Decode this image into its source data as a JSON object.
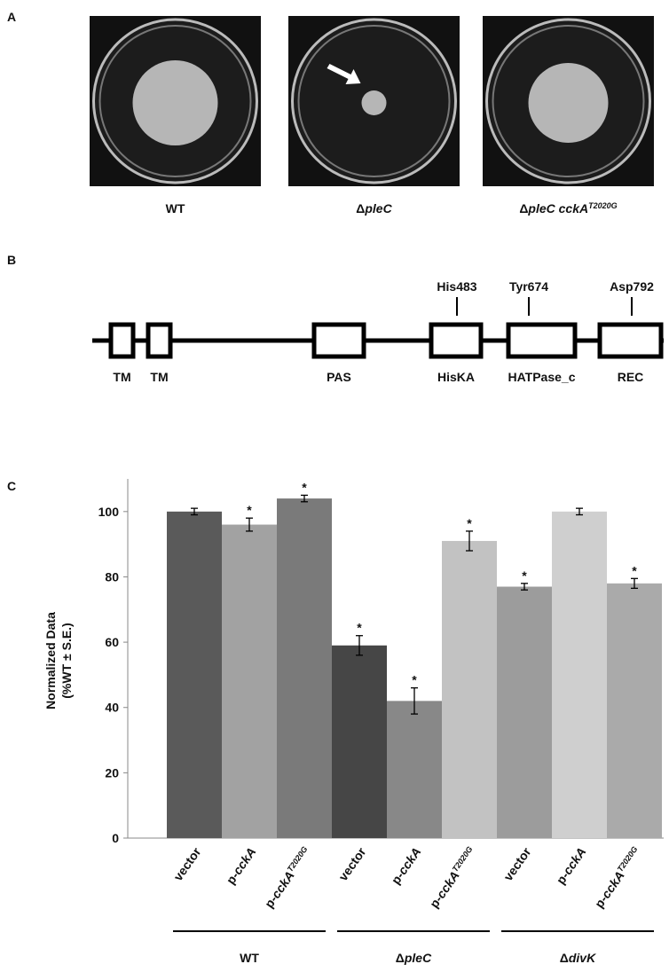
{
  "panel_a": {
    "label": "A",
    "plates": [
      {
        "label": [
          {
            "text": "WT"
          }
        ]
      },
      {
        "label": [
          {
            "text": "Δ"
          },
          {
            "text": "pleC",
            "italic": true
          }
        ]
      },
      {
        "label": [
          {
            "text": "Δ"
          },
          {
            "text": "pleC cckA",
            "italic": true
          },
          {
            "text": "T2020G",
            "italic": true,
            "superscript": true
          }
        ]
      }
    ]
  },
  "panel_b": {
    "label": "B",
    "domains": [
      {
        "label": "TM"
      },
      {
        "label": "TM"
      },
      {
        "label": "PAS"
      },
      {
        "label": "HisKA"
      },
      {
        "label": "HATPase_c"
      },
      {
        "label": "REC"
      }
    ],
    "sites": [
      {
        "label": "His483"
      },
      {
        "label": "Tyr674"
      },
      {
        "label": "Asp792"
      }
    ]
  },
  "panel_c": {
    "label": "C"
  },
  "chart_data": {
    "type": "bar",
    "y_label": [
      "Normalized Data",
      "(%WT ± S.E.)"
    ],
    "categories": [
      {
        "text": "vector"
      },
      {
        "prefix": "p-",
        "italic": "cckA"
      },
      {
        "prefix": "p-",
        "italic": "cckA",
        "superscript": "T2020G"
      },
      {
        "text": "vector"
      },
      {
        "prefix": "p-",
        "italic": "cckA"
      },
      {
        "prefix": "p-",
        "italic": "cckA",
        "superscript": "T2020G"
      },
      {
        "text": "vector"
      },
      {
        "prefix": "p-",
        "italic": "cckA"
      },
      {
        "prefix": "p-",
        "italic": "cckA",
        "superscript": "T2020G"
      }
    ],
    "values": [
      100,
      96,
      104,
      59,
      42,
      91,
      77,
      100,
      78
    ],
    "errors": [
      1,
      2,
      1,
      3,
      4,
      3,
      1,
      1,
      1.5
    ],
    "significance": [
      null,
      "*",
      "*",
      "*",
      "*",
      "*",
      "*",
      null,
      "*"
    ],
    "colors": [
      "#5a5a5a",
      "#a2a2a2",
      "#7a7a7a",
      "#464646",
      "#888888",
      "#c2c2c2",
      "#9c9c9c",
      "#cfcfcf",
      "#aaaaaa"
    ],
    "groups": [
      {
        "parts": [
          {
            "text": "WT"
          }
        ]
      },
      {
        "parts": [
          {
            "text": "Δ"
          },
          {
            "text": "pleC",
            "italic": true
          }
        ]
      },
      {
        "parts": [
          {
            "text": "Δ"
          },
          {
            "text": "divK",
            "italic": true
          }
        ]
      }
    ],
    "ylim": [
      0,
      110
    ],
    "yticks": [
      0,
      20,
      40,
      60,
      80,
      100
    ]
  }
}
